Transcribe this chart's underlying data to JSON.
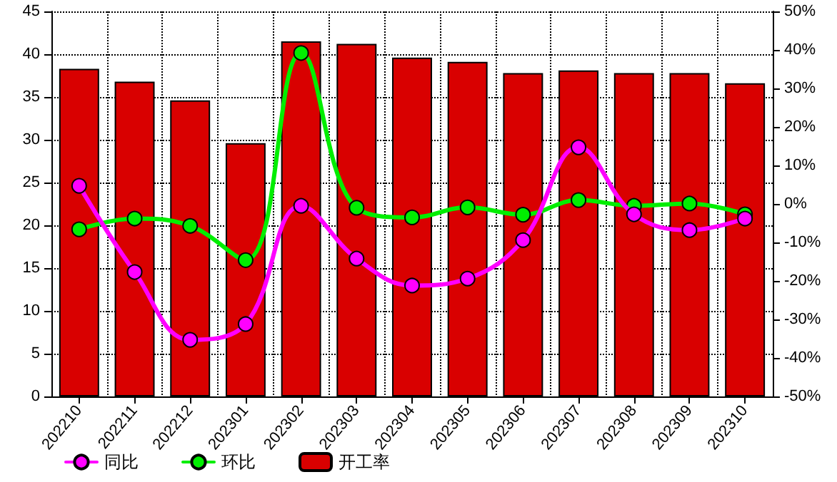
{
  "chart_data": {
    "type": "bar",
    "categories": [
      "202210",
      "202211",
      "202212",
      "202301",
      "202302",
      "202303",
      "202304",
      "202305",
      "202306",
      "202307",
      "202308",
      "202309",
      "202310"
    ],
    "series": [
      {
        "name": "同比",
        "type": "line",
        "axis": "y2",
        "color": "#ff00ff",
        "values": [
          4.7,
          -17.7,
          -35.3,
          -31.2,
          -0.5,
          -14.2,
          -21.2,
          -19.4,
          -9.4,
          14.7,
          -2.7,
          -6.8,
          -3.8
        ]
      },
      {
        "name": "环比",
        "type": "line",
        "axis": "y2",
        "color": "#00ee00",
        "values": [
          -6.6,
          -3.8,
          -5.7,
          -14.6,
          39.2,
          -1.0,
          -3.5,
          -0.9,
          -2.8,
          1.0,
          -0.5,
          0.1,
          -2.7
        ]
      },
      {
        "name": "开工率",
        "color": "#d90000",
        "values": [
          38.3,
          36.8,
          34.6,
          29.6,
          41.5,
          41.2,
          39.6,
          39.1,
          37.8,
          38.1,
          37.8,
          37.8,
          36.6
        ]
      }
    ],
    "ylim": [
      0,
      45
    ],
    "yticks": [
      0,
      5,
      10,
      15,
      20,
      25,
      30,
      35,
      40,
      45
    ],
    "y2lim": [
      -50,
      50
    ],
    "y2ticks": [
      {
        "value": -50,
        "label": "-50%"
      },
      {
        "value": -40,
        "label": "-40%"
      },
      {
        "value": -30,
        "label": "-30%"
      },
      {
        "value": -20,
        "label": "-20%"
      },
      {
        "value": -10,
        "label": "-10%"
      },
      {
        "value": 0,
        "label": "0%"
      },
      {
        "value": 10,
        "label": "10%"
      },
      {
        "value": 20,
        "label": "20%"
      },
      {
        "value": 30,
        "label": "30%"
      },
      {
        "value": 40,
        "label": "40%"
      },
      {
        "value": 50,
        "label": "50%"
      }
    ],
    "grid": true,
    "legend": "bottom left",
    "marker": "circle",
    "line_style": "solid"
  }
}
